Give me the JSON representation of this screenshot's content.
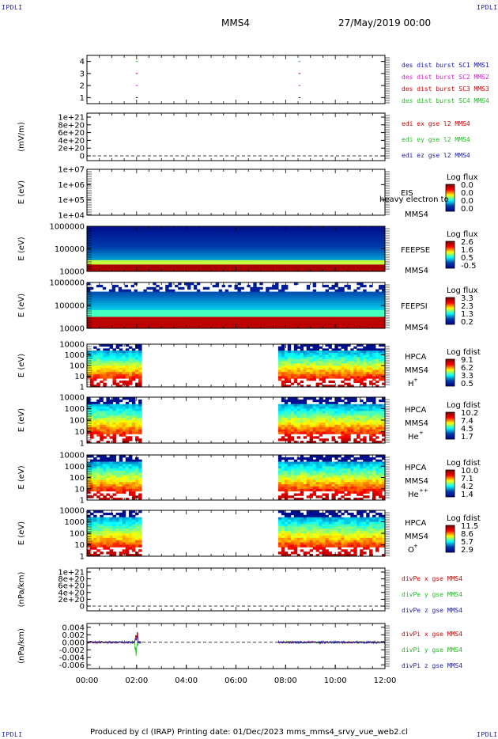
{
  "header": {
    "mission": "MMS4",
    "date": "27/May/2019 00:00",
    "corner_label": "IPDLI"
  },
  "footer": "Produced by cl (IRAP)   Printing date: 01/Dec/2023   mms_mms4_srvy_vue_web2.cl",
  "colors": {
    "blue": "#1a1aa8",
    "magenta": "#cc22cc",
    "red": "#cc0000",
    "green": "#22bb22"
  },
  "chart_data": {
    "type": "stacked-timeseries",
    "x_ticks": [
      "00:00",
      "02:00",
      "04:00",
      "06:00",
      "08:00",
      "10:00",
      "12:00"
    ],
    "xlim_hours": [
      0,
      12
    ],
    "panels": [
      {
        "id": "burst",
        "type": "scatter",
        "ylabel": "",
        "yticks": [
          "4",
          "3",
          "2",
          "1"
        ],
        "legend": [
          {
            "text": "des dist burst SC1 MMS1",
            "color": "#1a1aa8"
          },
          {
            "text": "des dist burst SC2 MMS2",
            "color": "#cc22cc"
          },
          {
            "text": "des dist burst SC3 MMS3",
            "color": "#cc0000"
          },
          {
            "text": "des dist burst SC4 MMS4",
            "color": "#22bb22"
          }
        ],
        "marks": [
          {
            "t": 2.0,
            "sc": 4
          },
          {
            "t": 2.0,
            "sc": 3
          },
          {
            "t": 2.0,
            "sc": 2
          },
          {
            "t": 2.0,
            "sc": 1
          },
          {
            "t": 8.55,
            "sc": 4
          },
          {
            "t": 8.55,
            "sc": 3
          },
          {
            "t": 8.55,
            "sc": 2
          },
          {
            "t": 8.55,
            "sc": 1
          }
        ]
      },
      {
        "id": "edi",
        "type": "line",
        "ylabel": "(mV/m)",
        "yticks": [
          "1e+21",
          "8e+20",
          "6e+20",
          "4e+20",
          "2e+20",
          "0"
        ],
        "legend": [
          {
            "text": "edi ex gse l2 MMS4",
            "color": "#cc0000"
          },
          {
            "text": "edi ey gse l2 MMS4",
            "color": "#22bb22"
          },
          {
            "text": "edi ez gse l2 MMS4",
            "color": "#1a1aa8"
          }
        ]
      },
      {
        "id": "eis",
        "type": "spectrogram",
        "ylabel": "E (eV)",
        "yticks": [
          "1e+07",
          "1e+06",
          "1e+05",
          "1e+04"
        ],
        "labels": [
          "EIS",
          "MMS4"
        ],
        "overlay": "heavy electron to",
        "cbar_title": "Log flux",
        "cbar_ticks": [
          "0.0",
          "0.0",
          "0.0",
          "0.0"
        ]
      },
      {
        "id": "feepse",
        "type": "spectrogram",
        "ylabel": "E (eV)",
        "yticks": [
          "1000000",
          "100000",
          "10000"
        ],
        "labels": [
          "FEEPSE",
          "MMS4"
        ],
        "cbar_title": "Log flux",
        "cbar_ticks": [
          "2.6",
          "1.6",
          "0.5",
          "-0.5"
        ]
      },
      {
        "id": "feepsi",
        "type": "spectrogram",
        "ylabel": "E (eV)",
        "yticks": [
          "1000000",
          "100000",
          "10000"
        ],
        "labels": [
          "FEEPSI",
          "MMS4"
        ],
        "cbar_title": "Log flux",
        "cbar_ticks": [
          "3.3",
          "2.3",
          "1.3",
          "0.2"
        ]
      },
      {
        "id": "hpca_h",
        "type": "spectrogram",
        "ylabel": "E (eV)",
        "yticks": [
          "10000",
          "1000",
          "100",
          "10",
          "1"
        ],
        "labels": [
          "HPCA",
          "MMS4"
        ],
        "species": "H",
        "species_sup": "+",
        "cbar_title": "Log fdist",
        "cbar_ticks": [
          "9.1",
          "6.2",
          "3.3",
          "0.5"
        ],
        "intervals_hours": [
          [
            0,
            2.2
          ],
          [
            7.7,
            12
          ]
        ]
      },
      {
        "id": "hpca_he",
        "type": "spectrogram",
        "ylabel": "E (eV)",
        "yticks": [
          "10000",
          "1000",
          "100",
          "10",
          "1"
        ],
        "labels": [
          "HPCA",
          "MMS4"
        ],
        "species": "He",
        "species_sup": "+",
        "cbar_title": "Log fdist",
        "cbar_ticks": [
          "10.2",
          "7.4",
          "4.5",
          "1.7"
        ],
        "intervals_hours": [
          [
            0,
            2.2
          ],
          [
            7.7,
            12
          ]
        ]
      },
      {
        "id": "hpca_hepp",
        "type": "spectrogram",
        "ylabel": "E (eV)",
        "yticks": [
          "10000",
          "1000",
          "100",
          "10",
          "1"
        ],
        "labels": [
          "HPCA",
          "MMS4"
        ],
        "species": "He",
        "species_sup": "++",
        "cbar_title": "Log fdist",
        "cbar_ticks": [
          "10.0",
          "7.1",
          "4.2",
          "1.4"
        ],
        "intervals_hours": [
          [
            0,
            2.2
          ],
          [
            7.7,
            12
          ]
        ]
      },
      {
        "id": "hpca_o",
        "type": "spectrogram",
        "ylabel": "E (eV)",
        "yticks": [
          "10000",
          "1000",
          "100",
          "10",
          "1"
        ],
        "labels": [
          "HPCA",
          "MMS4"
        ],
        "species": "O",
        "species_sup": "+",
        "cbar_title": "Log fdist",
        "cbar_ticks": [
          "11.5",
          "8.6",
          "5.7",
          "2.9"
        ],
        "intervals_hours": [
          [
            0,
            2.2
          ],
          [
            7.7,
            12
          ]
        ]
      },
      {
        "id": "divpe",
        "type": "line",
        "ylabel": "(nPa/km)",
        "yticks": [
          "1e+21",
          "8e+20",
          "6e+20",
          "4e+20",
          "2e+20",
          "0"
        ],
        "legend": [
          {
            "text": "divPe x gse MMS4",
            "color": "#cc0000"
          },
          {
            "text": "divPe y gse MMS4",
            "color": "#22bb22"
          },
          {
            "text": "divPe z gse MMS4",
            "color": "#1a1aa8"
          }
        ]
      },
      {
        "id": "divpi",
        "type": "line",
        "ylabel": "(nPa/km)",
        "yticks": [
          "0.004",
          "0.002",
          "0.000",
          "-0.002",
          "-0.004",
          "-0.006"
        ],
        "ylim": [
          -0.007,
          0.005
        ],
        "legend": [
          {
            "text": "divPi x gse MMS4",
            "color": "#cc0000"
          },
          {
            "text": "divPi y gse MMS4",
            "color": "#22bb22"
          },
          {
            "text": "divPi z gse MMS4",
            "color": "#1a1aa8"
          }
        ],
        "intervals_hours": [
          [
            0,
            2.2
          ],
          [
            7.7,
            12
          ]
        ]
      }
    ]
  }
}
